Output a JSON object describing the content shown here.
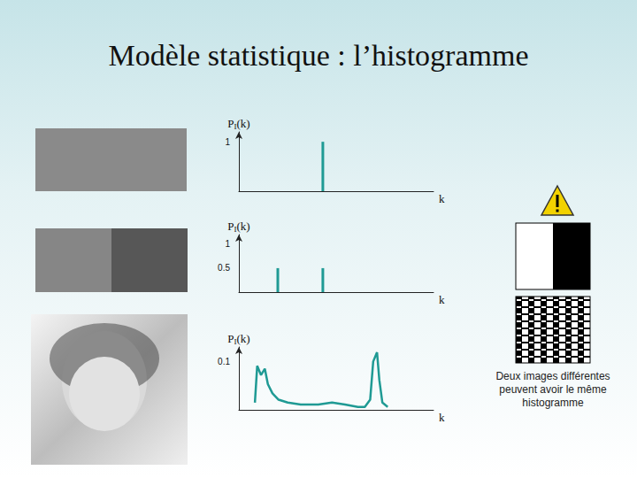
{
  "title": "Modèle statistique : l’histogramme",
  "chart_data": [
    {
      "type": "bar",
      "ylabel": "PI(k)",
      "xlabel": "k",
      "x": [
        110
      ],
      "values": [
        1
      ],
      "xlim": [
        0,
        255
      ],
      "ylim": [
        0,
        1.2
      ],
      "yticks": [
        1
      ],
      "tick_labels": "y",
      "color": "#1f9a94"
    },
    {
      "type": "bar",
      "ylabel": "PI(k)",
      "xlabel": "k",
      "x": [
        51,
        110
      ],
      "values": [
        0.5,
        0.5
      ],
      "xlim": [
        0,
        255
      ],
      "ylim": [
        0,
        1.2
      ],
      "yticks": [
        0.5,
        1
      ],
      "tick_labels": "y",
      "color": "#1f9a94"
    },
    {
      "type": "line",
      "ylabel": "PI(k)",
      "xlabel": "k",
      "x": [
        21,
        24,
        29,
        34,
        38,
        44,
        52,
        64,
        81,
        104,
        122,
        139,
        156,
        165,
        172,
        176,
        181,
        184,
        188,
        195
      ],
      "values": [
        0.015,
        0.091,
        0.072,
        0.085,
        0.053,
        0.034,
        0.021,
        0.015,
        0.011,
        0.011,
        0.015,
        0.011,
        0.006,
        0.006,
        0.021,
        0.1,
        0.119,
        0.062,
        0.015,
        0.006
      ],
      "xlim": [
        0,
        255
      ],
      "ylim": [
        0,
        0.13
      ],
      "yticks": [
        0.1
      ],
      "tick_labels": "y",
      "color": "#1f9a94"
    }
  ],
  "caption": "Deux images différentes peuvent avoir le même histogramme"
}
